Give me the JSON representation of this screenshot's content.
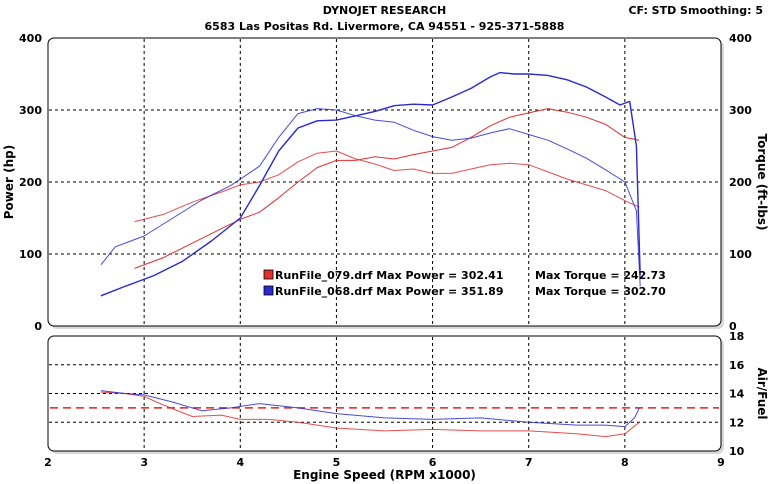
{
  "header": {
    "title": "DYNOJET RESEARCH",
    "address": "6583 Las Positas Rd. Livermore, CA 94551 - 925-371-5888",
    "settings": "CF: STD  Smoothing: 5"
  },
  "colors": {
    "run_079": "#e03030",
    "run_068": "#2a2ad0",
    "reference_line": "#e02020",
    "grid": "#000000"
  },
  "chart_data": [
    {
      "type": "line",
      "panel": "power-torque",
      "xlabel": "Engine Speed (RPM x1000)",
      "ylabel": "Power (hp)",
      "ylabel_right": "Torque (ft-lbs)",
      "xlim": [
        2,
        9
      ],
      "ylim": [
        0,
        400
      ],
      "ylim_right": [
        0,
        400
      ],
      "xticks": [
        "2",
        "3",
        "4",
        "5",
        "6",
        "7",
        "8",
        "9"
      ],
      "yticks": [
        "0",
        "100",
        "200",
        "300",
        "400"
      ],
      "yticks_right": [
        "0",
        "100",
        "200",
        "300",
        "400"
      ],
      "grid": true,
      "legend": [
        {
          "swatch": "red",
          "text": "RunFile_079.drf Max Power = 302.41",
          "torque_text": "Max Torque = 242.73"
        },
        {
          "swatch": "blue",
          "text": "RunFile_068.drf Max Power = 351.89",
          "torque_text": "Max Torque = 302.70"
        }
      ],
      "series": [
        {
          "name": "RunFile_079.drf",
          "measure": "power",
          "color": "#e03030",
          "x": [
            2.9,
            3.2,
            3.5,
            3.8,
            4.0,
            4.2,
            4.4,
            4.6,
            4.8,
            5.0,
            5.2,
            5.4,
            5.6,
            5.8,
            6.0,
            6.2,
            6.4,
            6.6,
            6.8,
            7.0,
            7.2,
            7.4,
            7.6,
            7.8,
            8.0,
            8.15
          ],
          "y": [
            80,
            95,
            115,
            135,
            148,
            158,
            178,
            200,
            220,
            230,
            230,
            235,
            232,
            238,
            243,
            248,
            262,
            278,
            290,
            296,
            302,
            297,
            290,
            280,
            262,
            258
          ]
        },
        {
          "name": "RunFile_079.drf",
          "measure": "torque",
          "color": "#e03030",
          "x": [
            2.9,
            3.2,
            3.5,
            3.8,
            4.0,
            4.2,
            4.4,
            4.6,
            4.8,
            5.0,
            5.2,
            5.4,
            5.6,
            5.8,
            6.0,
            6.2,
            6.4,
            6.6,
            6.8,
            7.0,
            7.2,
            7.4,
            7.6,
            7.8,
            8.0,
            8.15
          ],
          "y": [
            145,
            155,
            172,
            186,
            196,
            200,
            210,
            228,
            240,
            243,
            232,
            225,
            216,
            218,
            212,
            212,
            218,
            224,
            226,
            224,
            214,
            204,
            196,
            188,
            174,
            165
          ]
        },
        {
          "name": "RunFile_068.drf",
          "measure": "power",
          "color": "#2a2ad0",
          "x": [
            2.55,
            2.8,
            3.1,
            3.4,
            3.7,
            4.0,
            4.2,
            4.4,
            4.6,
            4.8,
            5.0,
            5.2,
            5.4,
            5.6,
            5.8,
            6.0,
            6.2,
            6.4,
            6.6,
            6.7,
            6.85,
            7.0,
            7.2,
            7.4,
            7.6,
            7.8,
            7.95,
            8.05,
            8.12,
            8.16
          ],
          "y": [
            42,
            55,
            70,
            90,
            118,
            150,
            195,
            243,
            275,
            285,
            286,
            292,
            298,
            306,
            308,
            307,
            318,
            330,
            346,
            352,
            350,
            350,
            348,
            342,
            332,
            318,
            307,
            312,
            250,
            70
          ]
        },
        {
          "name": "RunFile_068.drf",
          "measure": "torque",
          "color": "#2a2ad0",
          "x": [
            2.55,
            2.7,
            3.0,
            3.3,
            3.6,
            3.9,
            4.2,
            4.4,
            4.6,
            4.8,
            5.0,
            5.2,
            5.4,
            5.6,
            5.8,
            6.0,
            6.2,
            6.4,
            6.6,
            6.8,
            7.0,
            7.2,
            7.4,
            7.6,
            7.8,
            8.0,
            8.12,
            8.16
          ],
          "y": [
            85,
            110,
            125,
            150,
            175,
            195,
            222,
            262,
            295,
            302,
            300,
            292,
            286,
            283,
            272,
            263,
            258,
            261,
            268,
            274,
            266,
            258,
            246,
            233,
            217,
            200,
            160,
            55
          ]
        }
      ]
    },
    {
      "type": "line",
      "panel": "air-fuel",
      "ylabel_right": "Air/Fuel",
      "xlim": [
        2,
        9
      ],
      "ylim": [
        10,
        18
      ],
      "xticks": [
        "2",
        "3",
        "4",
        "5",
        "6",
        "7",
        "8",
        "9"
      ],
      "yticks_right": [
        "10",
        "12",
        "14",
        "16",
        "18"
      ],
      "grid": true,
      "reference_line": 13.0,
      "series": [
        {
          "name": "RunFile_079.drf",
          "measure": "air-fuel",
          "color": "#e03030",
          "x": [
            2.55,
            2.8,
            3.0,
            3.2,
            3.5,
            3.8,
            4.0,
            4.3,
            4.6,
            5.0,
            5.5,
            6.0,
            6.5,
            7.0,
            7.5,
            7.8,
            8.0,
            8.15
          ],
          "y": [
            14.1,
            14.0,
            13.8,
            13.2,
            12.4,
            12.5,
            12.2,
            12.2,
            12.0,
            11.6,
            11.4,
            11.5,
            11.4,
            11.4,
            11.2,
            11.0,
            11.2,
            12.0
          ]
        },
        {
          "name": "RunFile_068.drf",
          "measure": "air-fuel",
          "color": "#2a2ad0",
          "x": [
            2.55,
            2.8,
            3.0,
            3.3,
            3.6,
            3.9,
            4.2,
            4.6,
            5.0,
            5.5,
            6.0,
            6.5,
            7.0,
            7.5,
            7.8,
            8.0,
            8.1,
            8.15
          ],
          "y": [
            14.2,
            14.0,
            13.9,
            13.4,
            12.8,
            13.0,
            13.3,
            13.0,
            12.6,
            12.3,
            12.2,
            12.3,
            12.0,
            11.8,
            11.8,
            11.7,
            12.3,
            13.0
          ]
        }
      ]
    }
  ]
}
